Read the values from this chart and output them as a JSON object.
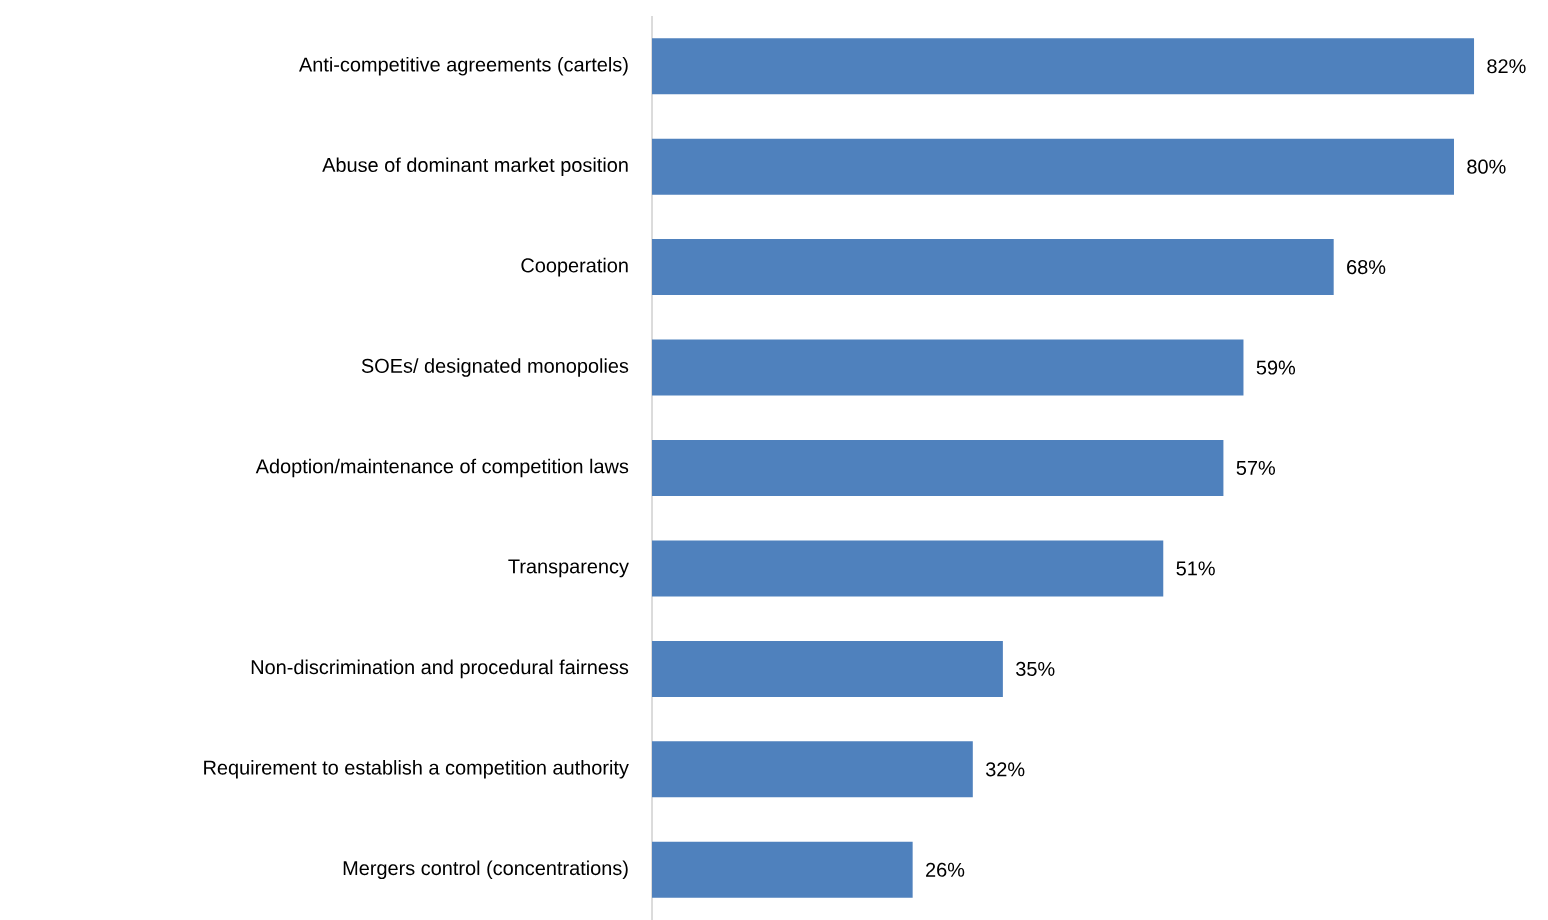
{
  "chart_data": {
    "type": "bar",
    "orientation": "horizontal",
    "categories": [
      "Anti-competitive agreements (cartels)",
      "Abuse of dominant market position",
      "Cooperation",
      "SOEs/ designated monopolies",
      "Adoption/maintenance of competition laws",
      "Transparency",
      "Non-discrimination and procedural fairness",
      "Requirement to establish a competition authority",
      "Mergers control (concentrations)"
    ],
    "values": [
      82,
      80,
      68,
      59,
      57,
      51,
      35,
      32,
      26
    ],
    "value_labels": [
      "82%",
      "80%",
      "68%",
      "59%",
      "57%",
      "51%",
      "35%",
      "32%",
      "26%"
    ],
    "color": "#4f81bd"
  }
}
